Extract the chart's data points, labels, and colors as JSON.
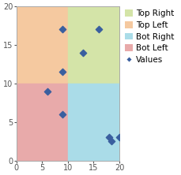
{
  "points_x": [
    6,
    9,
    9,
    9,
    13,
    16,
    18,
    18.5,
    20
  ],
  "points_y": [
    9,
    17,
    11.5,
    6,
    14,
    17,
    3,
    2.5,
    3
  ],
  "marker_color": "#3A5F9F",
  "marker_size": 18,
  "xlim": [
    0,
    20
  ],
  "ylim": [
    0,
    20
  ],
  "xticks": [
    0,
    5,
    10,
    15,
    20
  ],
  "yticks": [
    0,
    5,
    10,
    15,
    20
  ],
  "midpoint_x": 10,
  "midpoint_y": 10,
  "quad_colors": {
    "top_left": "#F5C9A0",
    "top_right": "#D4E4A8",
    "bot_left": "#E8AAAA",
    "bot_right": "#AADCE8"
  },
  "legend_labels": [
    "Top Right",
    "Top Left",
    "Bot Right",
    "Bot Left",
    "Values"
  ],
  "legend_colors": [
    "#D4E4A8",
    "#F5C9A0",
    "#AADCE8",
    "#E8AAAA",
    "#3A5F9F"
  ],
  "tick_fontsize": 7,
  "legend_fontsize": 7.5
}
